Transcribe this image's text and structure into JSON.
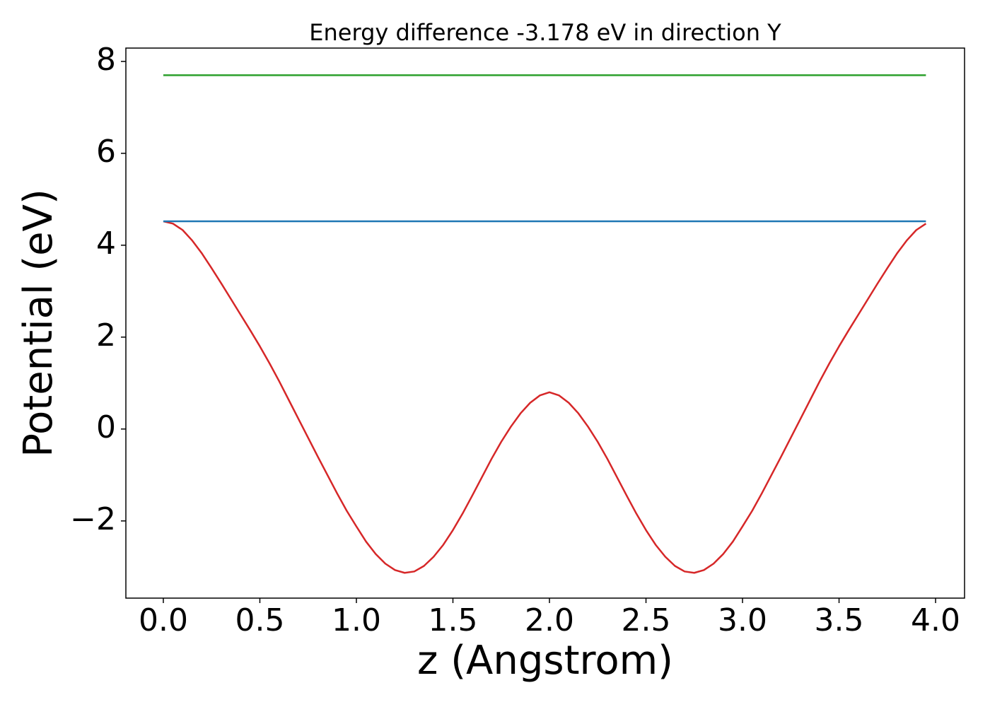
{
  "chart_data": {
    "type": "line",
    "title": "Energy difference -3.178 eV in direction Y",
    "xlabel": "z (Angstrom)",
    "ylabel": "Potential (eV)",
    "xlim": [
      -0.194,
      4.15
    ],
    "ylim": [
      -3.68,
      8.29
    ],
    "xticks": [
      {
        "value": 0,
        "label": "0.0"
      },
      0.5,
      {
        "value": 1,
        "label": "1.0"
      },
      1.5,
      {
        "value": 2,
        "label": "2.0"
      },
      2.5,
      {
        "value": 3,
        "label": "3.0"
      },
      3.5,
      {
        "value": 4,
        "label": "4.0"
      }
    ],
    "yticks": [
      {
        "value": -2,
        "label": "−2"
      },
      0,
      2,
      4,
      6,
      8
    ],
    "grid": false,
    "series": [
      {
        "color": "#d62728",
        "x": [
          0,
          0.05,
          0.1,
          0.15,
          0.2,
          0.25,
          0.3,
          0.35,
          0.4,
          0.45,
          0.5,
          0.55,
          0.6,
          0.65,
          0.7,
          0.75,
          0.8,
          0.85,
          0.9,
          0.95,
          1.0,
          1.05,
          1.1,
          1.15,
          1.2,
          1.25,
          1.3,
          1.35,
          1.4,
          1.45,
          1.5,
          1.55,
          1.6,
          1.65,
          1.7,
          1.75,
          1.8,
          1.85,
          1.9,
          1.95,
          2.0,
          2.05,
          2.1,
          2.15,
          2.2,
          2.25,
          2.3,
          2.35,
          2.4,
          2.45,
          2.5,
          2.55,
          2.6,
          2.65,
          2.7,
          2.75,
          2.8,
          2.85,
          2.9,
          2.95,
          3.0,
          3.05,
          3.1,
          3.15,
          3.2,
          3.25,
          3.3,
          3.35,
          3.4,
          3.45,
          3.5,
          3.55,
          3.6,
          3.65,
          3.7,
          3.75,
          3.8,
          3.85,
          3.9,
          3.95
        ],
        "values": [
          4.52,
          4.47,
          4.33,
          4.1,
          3.82,
          3.5,
          3.17,
          2.83,
          2.49,
          2.15,
          1.8,
          1.43,
          1.04,
          0.63,
          0.22,
          -0.19,
          -0.6,
          -1.0,
          -1.4,
          -1.78,
          -2.12,
          -2.45,
          -2.72,
          -2.93,
          -3.07,
          -3.13,
          -3.1,
          -2.98,
          -2.78,
          -2.52,
          -2.2,
          -1.84,
          -1.45,
          -1.05,
          -0.65,
          -0.28,
          0.05,
          0.34,
          0.57,
          0.73,
          0.8,
          0.73,
          0.57,
          0.34,
          0.05,
          -0.28,
          -0.65,
          -1.05,
          -1.45,
          -1.84,
          -2.2,
          -2.52,
          -2.78,
          -2.98,
          -3.1,
          -3.13,
          -3.07,
          -2.93,
          -2.72,
          -2.45,
          -2.12,
          -1.78,
          -1.4,
          -1.0,
          -0.6,
          -0.19,
          0.22,
          0.63,
          1.04,
          1.43,
          1.8,
          2.15,
          2.49,
          2.83,
          3.17,
          3.5,
          3.82,
          4.1,
          4.33,
          4.47
        ]
      },
      {
        "color": "#1f77b4",
        "x": [
          0,
          3.95
        ],
        "values": [
          4.52,
          4.52
        ]
      },
      {
        "color": "#2ca02c",
        "x": [
          0,
          3.95
        ],
        "values": [
          7.7,
          7.7
        ]
      }
    ]
  }
}
